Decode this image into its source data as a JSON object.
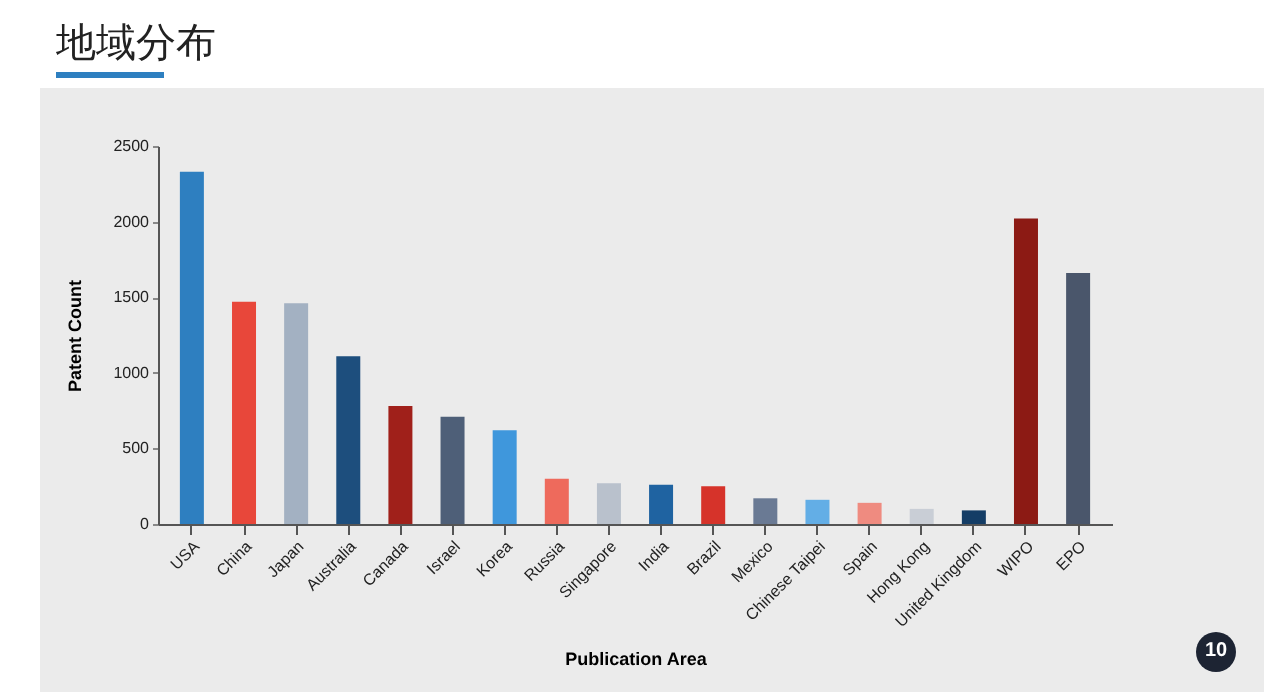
{
  "chart_data": {
    "type": "bar",
    "title": "地域分布",
    "xlabel": "Publication Area",
    "ylabel": "Patent Count",
    "categories": [
      "USA",
      "China",
      "Japan",
      "Australia",
      "Canada",
      "Israel",
      "Korea",
      "Russia",
      "Singapore",
      "India",
      "Brazil",
      "Mexico",
      "Chinese Taipei",
      "Spain",
      "Hong Kong",
      "United Kingdom",
      "WIPO",
      "EPO"
    ],
    "values": [
      2330,
      1470,
      1460,
      1110,
      780,
      710,
      620,
      300,
      270,
      260,
      250,
      170,
      160,
      140,
      100,
      90,
      2020,
      1660
    ],
    "colors": [
      "#2e7fc0",
      "#e8473a",
      "#a3b1c2",
      "#1d4e7d",
      "#a0201a",
      "#4e5f78",
      "#3f97dc",
      "#ee6a5c",
      "#b9c1cc",
      "#1f63a1",
      "#d6332a",
      "#6a7a94",
      "#63aee6",
      "#ef8b80",
      "#c9ced6",
      "#143d66",
      "#8c1a14",
      "#4a566b"
    ],
    "ylim": [
      0,
      2500
    ],
    "yticks": [
      0,
      500,
      1000,
      1500,
      2000,
      2500
    ],
    "grid": false,
    "legend": false,
    "annotations": [
      "10"
    ]
  }
}
